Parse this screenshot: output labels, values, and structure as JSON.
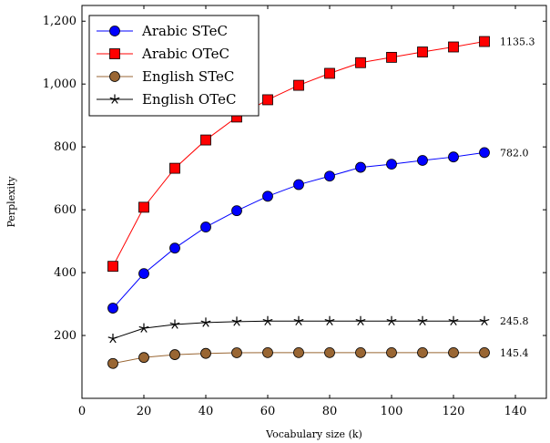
{
  "chart_data": {
    "type": "line",
    "xlabel": "Vocabulary size (k)",
    "ylabel": "Perplexity",
    "xlim": [
      0,
      150
    ],
    "ylim": [
      0,
      1250
    ],
    "x_ticks": [
      0,
      20,
      40,
      60,
      80,
      100,
      120,
      140
    ],
    "y_ticks": [
      200,
      400,
      600,
      800,
      1000,
      1200
    ],
    "x_tick_labels": [
      "0",
      "20",
      "40",
      "60",
      "80",
      "100",
      "120",
      "140"
    ],
    "y_tick_labels": [
      "200",
      "400",
      "600",
      "800",
      "1,000",
      "1,200"
    ],
    "grid": false,
    "legend_position": "top-left",
    "x": [
      10,
      20,
      30,
      40,
      50,
      60,
      70,
      80,
      90,
      100,
      110,
      120,
      130
    ],
    "series": [
      {
        "name": "Arabic STeC",
        "color": "#0000ff",
        "marker": "circle",
        "values": [
          287,
          397,
          478,
          545,
          597,
          643,
          680,
          707,
          735,
          745,
          757,
          768,
          782
        ],
        "end_label": "782.0"
      },
      {
        "name": "Arabic OTeC",
        "color": "#ff0000",
        "marker": "square",
        "values": [
          420,
          608,
          732,
          822,
          895,
          950,
          996,
          1034,
          1068,
          1085,
          1102,
          1118,
          1135.3
        ],
        "end_label": "1135.3"
      },
      {
        "name": "English STeC",
        "color": "#996633",
        "marker": "circle",
        "values": [
          111,
          130,
          139,
          143,
          145,
          145.4,
          145.4,
          145.4,
          145.4,
          145.4,
          145.4,
          145.4,
          145.4
        ],
        "end_label": "145.4"
      },
      {
        "name": "English OTeC",
        "color": "#000000",
        "marker": "star",
        "values": [
          190,
          223,
          235,
          241,
          244,
          245.8,
          245.8,
          245.8,
          245.8,
          245.8,
          245.8,
          245.8,
          245.8
        ],
        "end_label": "245.8"
      }
    ]
  }
}
